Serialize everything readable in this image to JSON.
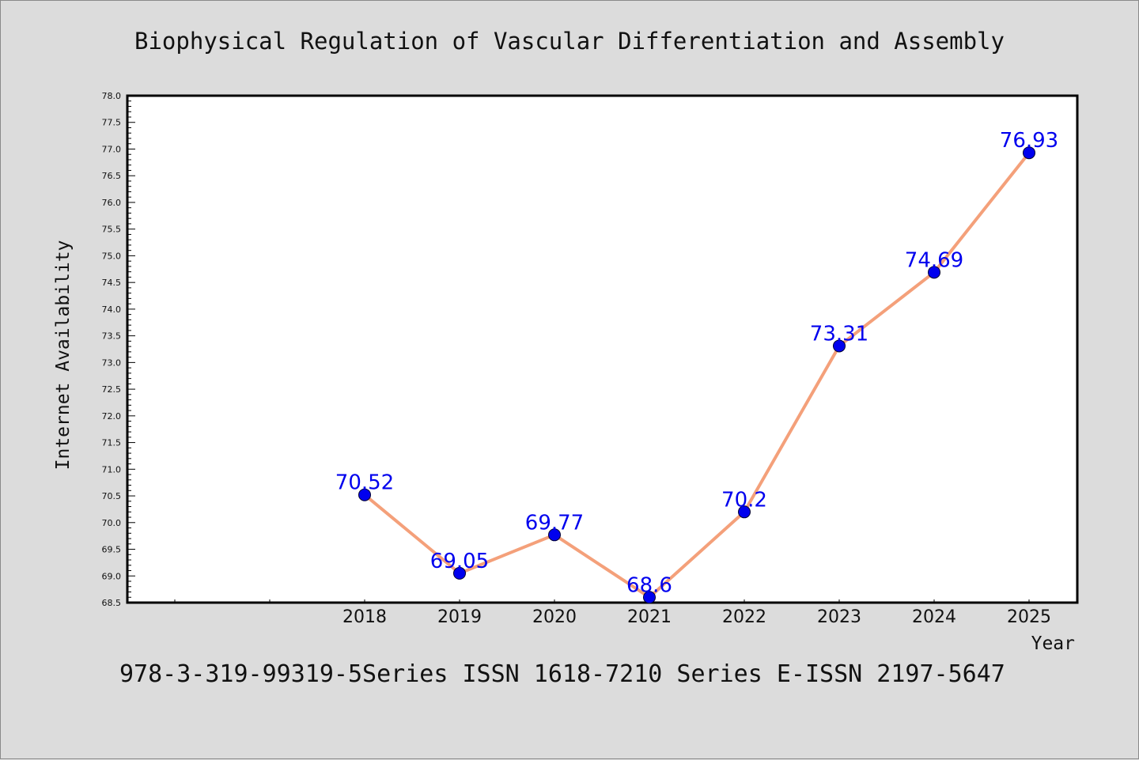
{
  "header": {
    "title": "Biophysical Regulation of Vascular Differentiation and Assembly"
  },
  "footer": {
    "text": "978-3-319-99319-5Series ISSN 1618-7210 Series E-ISSN 2197-5647"
  },
  "colors": {
    "background": "#dcdcdc",
    "plot_background": "#ffffff",
    "line": "#f4a07a",
    "marker": "#0000ee",
    "data_label": "#0000ee"
  },
  "chart_data": {
    "type": "line",
    "title": "Biophysical Regulation of Vascular Differentiation and Assembly",
    "xlabel": "Year",
    "ylabel": "Internet Availability",
    "x": [
      "2018",
      "2019",
      "2020",
      "2021",
      "2022",
      "2023",
      "2024",
      "2025"
    ],
    "series": [
      {
        "values": [
          70.52,
          69.05,
          69.77,
          68.6,
          70.2,
          73.31,
          74.69,
          76.93
        ]
      }
    ],
    "data_labels": [
      "70.52",
      "69.05",
      "69.77",
      "68.6",
      "70.2",
      "73.31",
      "74.69",
      "76.93"
    ],
    "ylim": [
      68.5,
      78.0
    ],
    "yticks": [
      "68.5",
      "69.0",
      "69.5",
      "70.0",
      "70.5",
      "71.0",
      "71.5",
      "72.0",
      "72.5",
      "73.0",
      "73.5",
      "74.0",
      "74.5",
      "75.0",
      "75.5",
      "76.0",
      "76.5",
      "77.0",
      "77.5",
      "78.0"
    ],
    "grid": false,
    "legend": "none"
  }
}
